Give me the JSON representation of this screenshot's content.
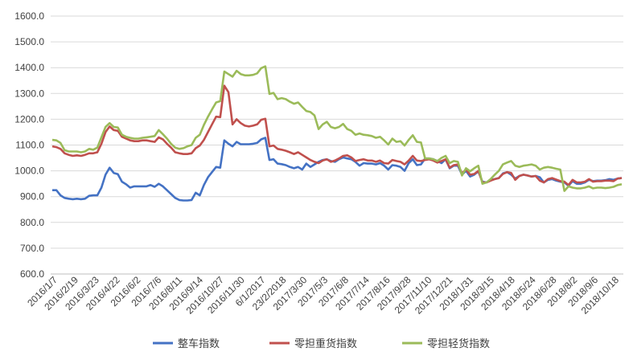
{
  "chart_data": {
    "type": "line",
    "title": "",
    "xlabel": "",
    "ylabel": "",
    "ylim": [
      600,
      1600
    ],
    "y_ticks": [
      "600.0",
      "700.0",
      "800.0",
      "900.0",
      "1000.0",
      "1100.0",
      "1200.0",
      "1300.0",
      "1400.0",
      "1500.0",
      "1600.0"
    ],
    "x_tick_labels": [
      "2016/1/7",
      "2016/2/19",
      "2016/3/23",
      "2016/4/22",
      "2016/6/2",
      "2016/7/6",
      "2016/8/11",
      "2016/9/14",
      "2016/10/27",
      "2016/11/30",
      "6/1/2017",
      "23/2/2018",
      "2017/3/30",
      "2017/5/3",
      "2017/6/8",
      "2017/7/14",
      "2017/8/16",
      "2017/9/28",
      "2017/11/10",
      "2017/12/21",
      "2018/1/31",
      "2018/3/15",
      "2018/4/18",
      "2018/5/24",
      "2018/6/28",
      "2018/8/2",
      "2018/9/6",
      "2018/10/18"
    ],
    "grid": true,
    "legend_position": "bottom",
    "series": [
      {
        "name": "整车指数",
        "color": "#4472C4",
        "values": [
          925,
          925,
          905,
          895,
          892,
          890,
          892,
          890,
          892,
          903,
          905,
          905,
          935,
          985,
          1012,
          992,
          987,
          958,
          948,
          935,
          940,
          940,
          940,
          940,
          945,
          938,
          950,
          940,
          925,
          910,
          895,
          887,
          885,
          885,
          887,
          915,
          905,
          945,
          975,
          995,
          1015,
          1012,
          1118,
          1105,
          1095,
          1112,
          1103,
          1103,
          1103,
          1105,
          1108,
          1122,
          1128,
          1042,
          1045,
          1028,
          1026,
          1022,
          1015,
          1010,
          1015,
          1005,
          1028,
          1015,
          1025,
          1035,
          1042,
          1045,
          1038,
          1035,
          1045,
          1052,
          1048,
          1045,
          1035,
          1020,
          1030,
          1028,
          1028,
          1025,
          1030,
          1020,
          1005,
          1022,
          1020,
          1015,
          1000,
          1030,
          1045,
          1022,
          1025,
          1048,
          1048,
          1045,
          1038,
          1030,
          1045,
          1010,
          1020,
          1020,
          985,
          1000,
          978,
          985,
          998,
          958,
          955,
          965,
          968,
          972,
          990,
          995,
          985,
          970,
          980,
          985,
          982,
          978,
          980,
          975,
          955,
          965,
          968,
          962,
          958,
          955,
          942,
          960,
          950,
          950,
          955,
          965,
          960,
          962,
          962,
          964,
          968,
          965,
          970,
          972
        ]
      },
      {
        "name": "零担重货指数",
        "color": "#C0504D",
        "values": [
          1095,
          1092,
          1085,
          1068,
          1062,
          1058,
          1060,
          1058,
          1062,
          1068,
          1068,
          1072,
          1105,
          1150,
          1172,
          1158,
          1155,
          1132,
          1125,
          1118,
          1115,
          1115,
          1118,
          1118,
          1115,
          1112,
          1130,
          1122,
          1105,
          1090,
          1072,
          1068,
          1065,
          1065,
          1068,
          1088,
          1098,
          1120,
          1150,
          1180,
          1210,
          1208,
          1330,
          1305,
          1180,
          1200,
          1185,
          1175,
          1172,
          1175,
          1180,
          1198,
          1202,
          1095,
          1098,
          1085,
          1082,
          1078,
          1072,
          1065,
          1072,
          1062,
          1052,
          1042,
          1035,
          1030,
          1040,
          1045,
          1035,
          1040,
          1048,
          1058,
          1060,
          1052,
          1038,
          1042,
          1045,
          1040,
          1040,
          1035,
          1040,
          1030,
          1028,
          1042,
          1038,
          1035,
          1025,
          1040,
          1058,
          1040,
          1038,
          1042,
          1045,
          1040,
          1032,
          1038,
          1045,
          1012,
          1022,
          1025,
          990,
          1005,
          985,
          988,
          1000,
          955,
          955,
          962,
          968,
          972,
          988,
          995,
          992,
          965,
          980,
          985,
          982,
          978,
          980,
          962,
          955,
          968,
          972,
          966,
          960,
          958,
          945,
          965,
          955,
          955,
          958,
          968,
          958,
          960,
          960,
          962,
          962,
          960,
          970,
          972
        ]
      },
      {
        "name": "零担轻货指数",
        "color": "#9BBB59",
        "values": [
          1120,
          1118,
          1108,
          1080,
          1075,
          1075,
          1075,
          1072,
          1075,
          1085,
          1082,
          1090,
          1130,
          1170,
          1185,
          1170,
          1168,
          1140,
          1132,
          1128,
          1125,
          1125,
          1128,
          1130,
          1132,
          1135,
          1158,
          1142,
          1125,
          1105,
          1090,
          1085,
          1088,
          1095,
          1100,
          1128,
          1140,
          1178,
          1210,
          1238,
          1265,
          1270,
          1385,
          1375,
          1365,
          1388,
          1375,
          1370,
          1370,
          1372,
          1378,
          1398,
          1405,
          1298,
          1302,
          1278,
          1282,
          1278,
          1268,
          1260,
          1265,
          1248,
          1232,
          1228,
          1215,
          1162,
          1180,
          1190,
          1170,
          1165,
          1170,
          1182,
          1162,
          1155,
          1140,
          1145,
          1140,
          1138,
          1135,
          1128,
          1132,
          1118,
          1102,
          1125,
          1112,
          1115,
          1098,
          1120,
          1138,
          1112,
          1110,
          1048,
          1048,
          1045,
          1038,
          1050,
          1058,
          1030,
          1038,
          1035,
          982,
          1010,
          998,
          1010,
          1020,
          950,
          955,
          968,
          985,
          1000,
          1025,
          1032,
          1038,
          1020,
          1015,
          1020,
          1022,
          1025,
          1020,
          1005,
          1012,
          1015,
          1012,
          1008,
          1005,
          922,
          940,
          935,
          932,
          932,
          935,
          940,
          932,
          935,
          935,
          933,
          935,
          938,
          945,
          948
        ]
      }
    ]
  }
}
